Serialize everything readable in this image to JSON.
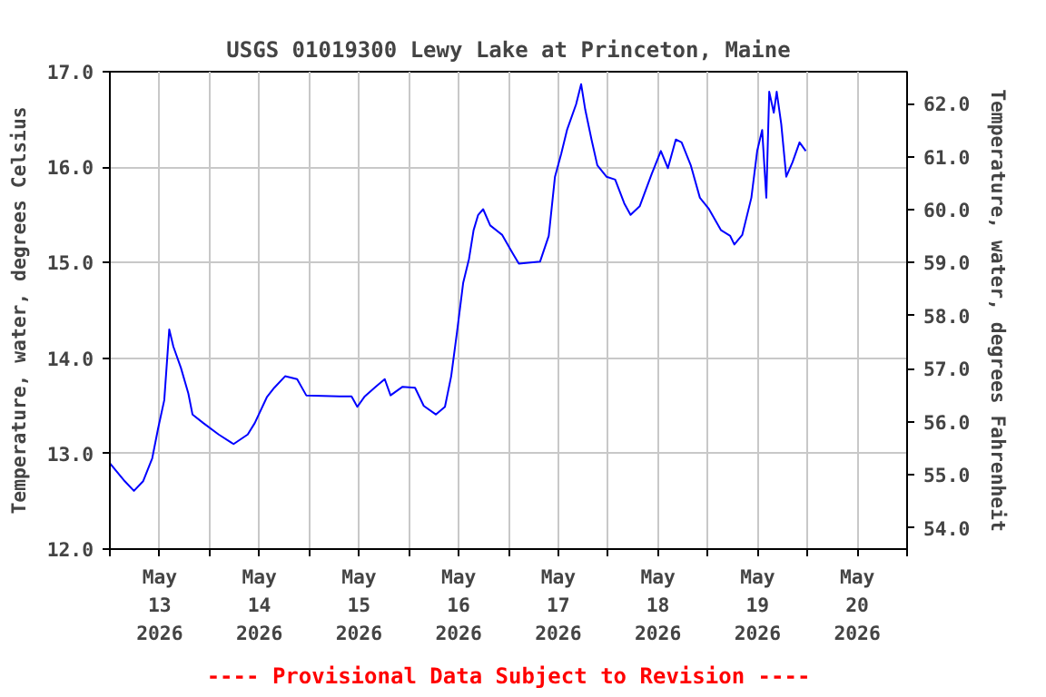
{
  "chart_data": {
    "type": "line",
    "title": "USGS 01019300 Lewy Lake at Princeton, Maine",
    "ylabel": "Temperature, water, degrees Celsius",
    "y2label": "Temperature, water, degrees Fahrenheit",
    "annotations": [
      "---- Provisional Data Subject to Revision ----"
    ],
    "xlim": [
      "2026-05-13T00:00",
      "2026-05-21T00:00"
    ],
    "xticks": [
      {
        "value": "2026-05-13T00:00",
        "label": null
      },
      {
        "value": "2026-05-13T12:00",
        "label": "May\n13\n2026"
      },
      {
        "value": "2026-05-14T00:00",
        "label": null
      },
      {
        "value": "2026-05-14T12:00",
        "label": "May\n14\n2026"
      },
      {
        "value": "2026-05-15T00:00",
        "label": null
      },
      {
        "value": "2026-05-15T12:00",
        "label": "May\n15\n2026"
      },
      {
        "value": "2026-05-16T00:00",
        "label": null
      },
      {
        "value": "2026-05-16T12:00",
        "label": "May\n16\n2026"
      },
      {
        "value": "2026-05-17T00:00",
        "label": null
      },
      {
        "value": "2026-05-17T12:00",
        "label": "May\n17\n2026"
      },
      {
        "value": "2026-05-18T00:00",
        "label": null
      },
      {
        "value": "2026-05-18T12:00",
        "label": "May\n18\n2026"
      },
      {
        "value": "2026-05-19T00:00",
        "label": null
      },
      {
        "value": "2026-05-19T12:00",
        "label": "May\n19\n2026"
      },
      {
        "value": "2026-05-20T00:00",
        "label": null
      },
      {
        "value": "2026-05-20T12:00",
        "label": "May\n20\n2026"
      },
      {
        "value": "2026-05-21T00:00",
        "label": null
      }
    ],
    "ylim": [
      12.0,
      17.0
    ],
    "yticks": [
      {
        "value": 12,
        "label": "12.0"
      },
      {
        "value": 13,
        "label": "13.0"
      },
      {
        "value": 14,
        "label": "14.0"
      },
      {
        "value": 15,
        "label": "15.0"
      },
      {
        "value": 16,
        "label": "16.0"
      },
      {
        "value": 17,
        "label": "17.0"
      }
    ],
    "y2lim": [
      53.6,
      62.6
    ],
    "y2ticks": [
      {
        "value": 54,
        "label": "54.0"
      },
      {
        "value": 55,
        "label": "55.0"
      },
      {
        "value": 56,
        "label": "56.0"
      },
      {
        "value": 57,
        "label": "57.0"
      },
      {
        "value": 58,
        "label": "58.0"
      },
      {
        "value": 59,
        "label": "59.0"
      },
      {
        "value": 60,
        "label": "60.0"
      },
      {
        "value": 61,
        "label": "61.0"
      },
      {
        "value": 62,
        "label": "62.0"
      }
    ],
    "grid": true,
    "series": [
      {
        "color": "#0000ff",
        "x": [
          "2026-05-13T00:00",
          "2026-05-13T03:36",
          "2026-05-13T05:48",
          "2026-05-13T08:00",
          "2026-05-13T10:12",
          "2026-05-13T11:36",
          "2026-05-13T13:06",
          "2026-05-13T14:18",
          "2026-05-13T15:18",
          "2026-05-13T17:06",
          "2026-05-13T18:54",
          "2026-05-13T19:54",
          "2026-05-13T22:30",
          "2026-05-14T02:12",
          "2026-05-14T05:48",
          "2026-05-14T09:12",
          "2026-05-14T10:54",
          "2026-05-14T13:48",
          "2026-05-14T15:36",
          "2026-05-14T18:12",
          "2026-05-14T21:06",
          "2026-05-14T23:18",
          "2026-05-15T07:18",
          "2026-05-15T10:12",
          "2026-05-15T11:36",
          "2026-05-15T13:24",
          "2026-05-15T16:00",
          "2026-05-15T18:12",
          "2026-05-15T19:36",
          "2026-05-15T22:30",
          "2026-05-16T01:30",
          "2026-05-16T03:36",
          "2026-05-16T06:30",
          "2026-05-16T08:42",
          "2026-05-16T10:12",
          "2026-05-16T11:36",
          "2026-05-16T13:06",
          "2026-05-16T14:30",
          "2026-05-16T15:36",
          "2026-05-16T16:42",
          "2026-05-16T17:54",
          "2026-05-16T19:36",
          "2026-05-16T22:30",
          "2026-05-17T01:00",
          "2026-05-17T02:30",
          "2026-05-17T07:36",
          "2026-05-17T09:42",
          "2026-05-17T11:12",
          "2026-05-17T12:42",
          "2026-05-17T14:06",
          "2026-05-17T16:18",
          "2026-05-17T17:30",
          "2026-05-17T18:30",
          "2026-05-17T20:00",
          "2026-05-17T21:24",
          "2026-05-17T23:36",
          "2026-05-18T01:42",
          "2026-05-18T03:54",
          "2026-05-18T05:24",
          "2026-05-18T07:36",
          "2026-05-18T10:30",
          "2026-05-18T12:42",
          "2026-05-18T14:24",
          "2026-05-18T16:18",
          "2026-05-18T17:42",
          "2026-05-18T19:54",
          "2026-05-18T22:06",
          "2026-05-19T00:18",
          "2026-05-19T03:12",
          "2026-05-19T05:24",
          "2026-05-19T06:24",
          "2026-05-19T08:18",
          "2026-05-19T10:30",
          "2026-05-19T11:54",
          "2026-05-19T13:06",
          "2026-05-19T14:06",
          "2026-05-19T14:48",
          "2026-05-19T15:54",
          "2026-05-19T16:36",
          "2026-05-19T17:42",
          "2026-05-19T18:54",
          "2026-05-19T20:24",
          "2026-05-19T22:06",
          "2026-05-19T23:36"
        ],
        "values": [
          12.9,
          12.71,
          12.61,
          12.71,
          12.95,
          13.26,
          13.56,
          14.3,
          14.12,
          13.9,
          13.63,
          13.41,
          13.32,
          13.2,
          13.1,
          13.2,
          13.32,
          13.59,
          13.69,
          13.81,
          13.78,
          13.61,
          13.6,
          13.6,
          13.49,
          13.6,
          13.7,
          13.78,
          13.61,
          13.7,
          13.69,
          13.5,
          13.41,
          13.49,
          13.81,
          14.27,
          14.79,
          15.04,
          15.34,
          15.5,
          15.56,
          15.39,
          15.29,
          15.1,
          14.99,
          15.01,
          15.28,
          15.9,
          16.14,
          16.39,
          16.66,
          16.87,
          16.6,
          16.29,
          16.02,
          15.9,
          15.87,
          15.62,
          15.5,
          15.59,
          15.93,
          16.17,
          15.99,
          16.29,
          16.26,
          16.02,
          15.68,
          15.56,
          15.34,
          15.28,
          15.19,
          15.29,
          15.68,
          16.17,
          16.39,
          15.68,
          16.79,
          16.57,
          16.79,
          16.45,
          15.9,
          16.05,
          16.26,
          16.17
        ]
      }
    ]
  }
}
